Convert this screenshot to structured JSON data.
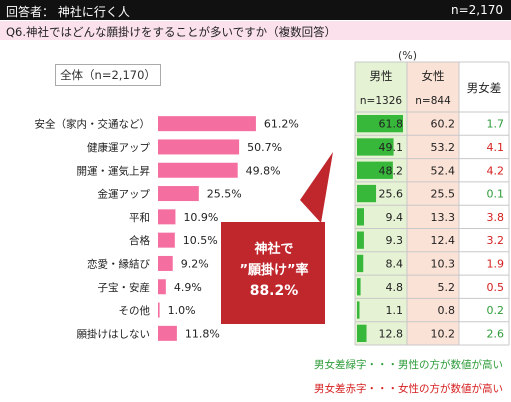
{
  "header": {
    "respondent": "回答者： 神社に行く人",
    "n_total": "n=2,170"
  },
  "question": "Q6.神社ではどんな願掛けをすることが多いですか（複数回答）",
  "total_label": "全体（n=2,170）",
  "pct_unit": "(%)",
  "columns": {
    "male": "男性",
    "male_n": "n=1326",
    "female": "女性",
    "female_n": "n=844",
    "diff": "男女差"
  },
  "callout": {
    "line1": "神社で",
    "line2": "”願掛け”率",
    "line3": "88.2%"
  },
  "legend": {
    "green": "男女差緑字・・・男性の方が数値が高い",
    "red": "男女差赤字・・・女性の方が数値が高い"
  },
  "colors": {
    "bar": "#f46ea0",
    "male_bg": "#e6f2d4",
    "female_bg": "#fbe2d6",
    "green_bar": "#37b83b",
    "diff_green": "#2e9c3a",
    "diff_red": "#d62020",
    "callout": "#c0272d"
  },
  "chart_data": {
    "type": "bar",
    "categories": [
      "安全（家内・交通など）",
      "健康運アップ",
      "開運・運気上昇",
      "金運アップ",
      "平和",
      "合格",
      "恋愛・縁結び",
      "子宝・安産",
      "その他",
      "願掛けはしない"
    ],
    "values": [
      61.2,
      50.7,
      49.8,
      25.5,
      10.9,
      10.5,
      9.2,
      4.9,
      1.0,
      11.8
    ],
    "value_labels": [
      "61.2%",
      "50.7%",
      "49.8%",
      "25.5%",
      "10.9%",
      "10.5%",
      "9.2%",
      "4.9%",
      "1.0%",
      "11.8%"
    ],
    "male": [
      61.8,
      49.1,
      48.2,
      25.6,
      9.4,
      9.3,
      8.4,
      4.8,
      1.1,
      12.8
    ],
    "female": [
      60.2,
      53.2,
      52.4,
      25.5,
      13.3,
      12.4,
      10.3,
      5.2,
      0.8,
      10.2
    ],
    "diff": [
      {
        "label": "1.7",
        "sign": "male"
      },
      {
        "label": "4.1",
        "sign": "female"
      },
      {
        "label": "4.2",
        "sign": "female"
      },
      {
        "label": "0.1",
        "sign": "male"
      },
      {
        "label": "3.8",
        "sign": "female"
      },
      {
        "label": "3.2",
        "sign": "female"
      },
      {
        "label": "1.9",
        "sign": "female"
      },
      {
        "label": "0.5",
        "sign": "female"
      },
      {
        "label": "0.2",
        "sign": "male"
      },
      {
        "label": "2.6",
        "sign": "male"
      }
    ]
  }
}
